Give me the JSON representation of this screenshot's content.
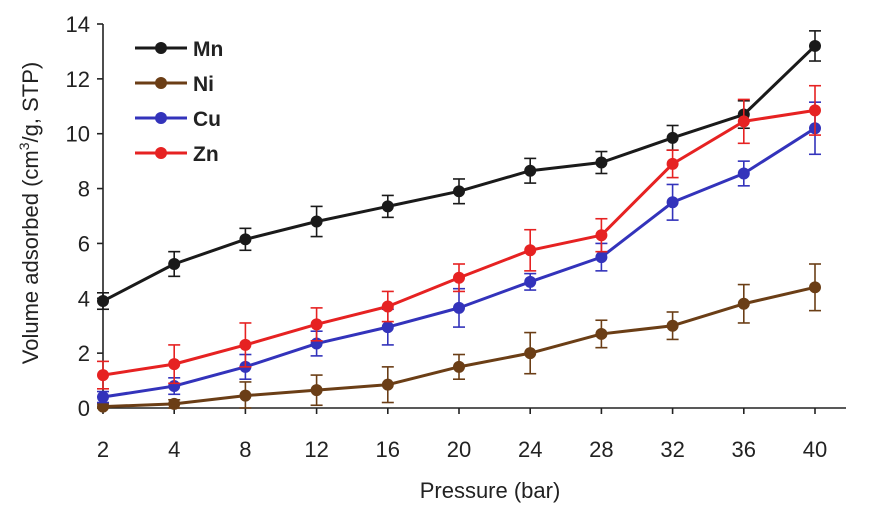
{
  "chart_data": {
    "type": "line",
    "title": "",
    "xlabel": "Pressure (bar)",
    "ylabel_parts": [
      "Volume adsorbed (cm",
      "3",
      "/g, STP)"
    ],
    "categories": [
      "2",
      "4",
      "8",
      "12",
      "16",
      "20",
      "24",
      "28",
      "32",
      "36",
      "40"
    ],
    "ylim": [
      0,
      14
    ],
    "yticks": [
      "0",
      "2",
      "4",
      "6",
      "8",
      "10",
      "12",
      "14"
    ],
    "grid": false,
    "legend_position": "top-left",
    "series": [
      {
        "name": "Mn",
        "color": "#1a1a1a",
        "values": [
          3.9,
          5.25,
          6.15,
          6.8,
          7.35,
          7.9,
          8.65,
          8.95,
          9.85,
          10.7,
          13.2
        ],
        "errors": [
          0.3,
          0.45,
          0.4,
          0.55,
          0.4,
          0.45,
          0.45,
          0.4,
          0.45,
          0.5,
          0.55
        ]
      },
      {
        "name": "Ni",
        "color": "#6b3e16",
        "values": [
          0.05,
          0.15,
          0.45,
          0.65,
          0.85,
          1.5,
          2.0,
          2.7,
          3.0,
          3.8,
          4.4
        ],
        "errors": [
          0.1,
          0.15,
          0.5,
          0.55,
          0.65,
          0.45,
          0.75,
          0.5,
          0.5,
          0.7,
          0.85
        ]
      },
      {
        "name": "Cu",
        "color": "#3333bb",
        "values": [
          0.4,
          0.8,
          1.5,
          2.35,
          2.95,
          3.65,
          4.6,
          5.5,
          7.5,
          8.55,
          10.2
        ],
        "errors": [
          0.2,
          0.3,
          0.45,
          0.45,
          0.65,
          0.7,
          0.3,
          0.5,
          0.65,
          0.45,
          0.95
        ]
      },
      {
        "name": "Zn",
        "color": "#e62222",
        "values": [
          1.2,
          1.6,
          2.3,
          3.05,
          3.7,
          4.75,
          5.75,
          6.3,
          8.9,
          10.45,
          10.85
        ],
        "errors": [
          0.5,
          0.7,
          0.8,
          0.6,
          0.55,
          0.5,
          0.75,
          0.6,
          0.5,
          0.8,
          0.9
        ]
      }
    ]
  }
}
